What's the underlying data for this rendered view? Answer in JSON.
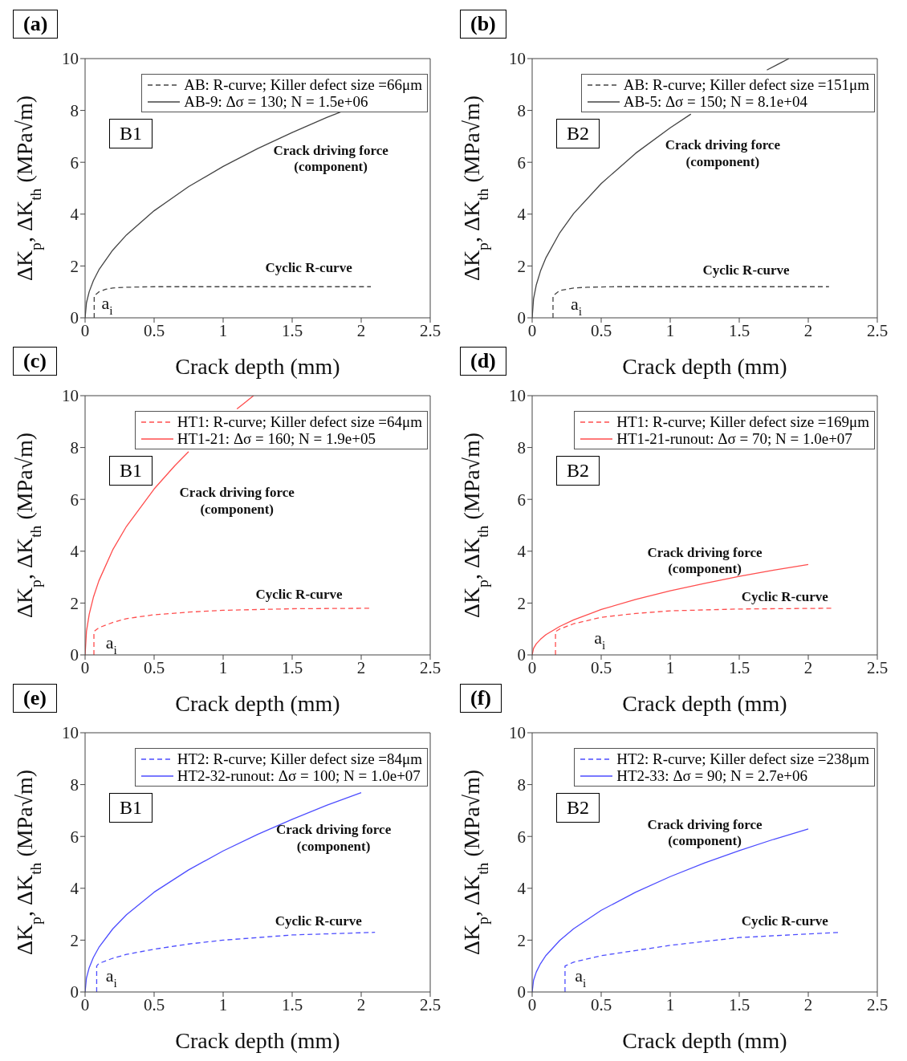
{
  "chart_data": [
    {
      "type": "line",
      "title": "(a)",
      "xlabel": "Crack depth (mm)",
      "ylabel": "ΔK$_{p}$, ΔK$_{th}$ (MPa√m)",
      "xlim": [
        0,
        2.5
      ],
      "ylim": [
        0,
        10
      ],
      "xticks": [
        0,
        0.5,
        1,
        1.5,
        2,
        2.5
      ],
      "yticks": [
        0,
        2,
        4,
        6,
        8,
        10
      ],
      "legend": "top right",
      "grid": false,
      "series": [
        {
          "name": "AB: R-curve; Killer defect size =66μm",
          "color": "#444444",
          "line_style": "dashed",
          "x": [
            0.066,
            0.066,
            0.1,
            0.15,
            0.2,
            0.3,
            0.5,
            1,
            1.5,
            2.07
          ],
          "values": [
            0,
            0.85,
            1.0,
            1.1,
            1.15,
            1.18,
            1.2,
            1.2,
            1.2,
            1.2
          ]
        },
        {
          "name": "AB-9: Δσ = 130; N = 1.5e+06",
          "color": "#444444",
          "line_style": "solid",
          "x": [
            0,
            0.01,
            0.03,
            0.06,
            0.1,
            0.2,
            0.3,
            0.5,
            0.75,
            1,
            1.25,
            1.5,
            1.75,
            1.85
          ],
          "values": [
            0,
            0.58,
            1.01,
            1.43,
            1.85,
            2.61,
            3.2,
            4.13,
            5.06,
            5.84,
            6.53,
            7.15,
            7.73,
            7.94
          ]
        }
      ],
      "annotations": [
        "B1",
        "Crack driving force\n(component)",
        "Cyclic R-curve",
        "a$_{i}$"
      ]
    },
    {
      "type": "line",
      "title": "(b)",
      "xlabel": "Crack depth (mm)",
      "ylabel": "ΔK$_{p}$, ΔK$_{th}$ (MPa√m)",
      "xlim": [
        0,
        2.5
      ],
      "ylim": [
        0,
        10
      ],
      "xticks": [
        0,
        0.5,
        1,
        1.5,
        2,
        2.5
      ],
      "yticks": [
        0,
        2,
        4,
        6,
        8,
        10
      ],
      "legend": "top right",
      "grid": false,
      "series": [
        {
          "name": "AB: R-curve; Killer defect size =151μm",
          "color": "#444444",
          "line_style": "dashed",
          "x": [
            0.151,
            0.151,
            0.2,
            0.3,
            0.4,
            0.6,
            1,
            1.5,
            2.15
          ],
          "values": [
            0,
            0.85,
            1.05,
            1.15,
            1.18,
            1.2,
            1.2,
            1.2,
            1.2
          ]
        },
        {
          "name": "AB-5: Δσ = 150; N = 8.1e+04",
          "color": "#444444",
          "line_style": "solid",
          "x": [
            0,
            0.01,
            0.03,
            0.06,
            0.1,
            0.2,
            0.3,
            0.5,
            0.75,
            1,
            1.15,
            1.5,
            1.7,
            1.78,
            1.86
          ],
          "values": [
            0,
            0.73,
            1.27,
            1.8,
            2.32,
            3.28,
            4.02,
            5.18,
            6.35,
            7.33,
            7.86,
            null,
            9.56,
            9.78,
            10
          ]
        }
      ],
      "annotations": [
        "B2",
        "Crack driving force\n(component)",
        "Cyclic R-curve",
        "a$_{i}$"
      ]
    },
    {
      "type": "line",
      "title": "(c)",
      "xlabel": "Crack depth (mm)",
      "ylabel": "ΔK$_{p}$, ΔK$_{th}$ (MPa√m)",
      "xlim": [
        0,
        2.5
      ],
      "ylim": [
        0,
        10
      ],
      "xticks": [
        0,
        0.5,
        1,
        1.5,
        2,
        2.5
      ],
      "yticks": [
        0,
        2,
        4,
        6,
        8,
        10
      ],
      "legend": "top right",
      "grid": false,
      "series": [
        {
          "name": "HT1: R-curve; Killer defect size =64μm",
          "color": "#ff4d4d",
          "line_style": "dashed",
          "x": [
            0.064,
            0.064,
            0.1,
            0.2,
            0.3,
            0.5,
            0.75,
            1,
            1.5,
            2.07
          ],
          "values": [
            0,
            0.9,
            1.05,
            1.25,
            1.4,
            1.55,
            1.65,
            1.72,
            1.78,
            1.8
          ]
        },
        {
          "name": "HT1-21: Δσ = 160; N = 1.9e+05",
          "color": "#ff4d4d",
          "line_style": "solid",
          "x": [
            0,
            0.01,
            0.03,
            0.06,
            0.1,
            0.2,
            0.3,
            0.5,
            0.65,
            0.75,
            0.9,
            1.1,
            1.15,
            1.22
          ],
          "values": [
            0,
            0.91,
            1.57,
            2.22,
            2.86,
            4.05,
            4.96,
            6.4,
            7.3,
            7.84,
            null,
            9.49,
            9.7,
            10
          ]
        }
      ],
      "annotations": [
        "B1",
        "Crack driving force\n(component)",
        "Cyclic R-curve",
        "a$_{i}$"
      ]
    },
    {
      "type": "line",
      "title": "(d)",
      "xlabel": "Crack depth (mm)",
      "ylabel": "ΔK$_{p}$, ΔK$_{th}$ (MPa√m)",
      "xlim": [
        0,
        2.5
      ],
      "ylim": [
        0,
        10
      ],
      "xticks": [
        0,
        0.5,
        1,
        1.5,
        2,
        2.5
      ],
      "yticks": [
        0,
        2,
        4,
        6,
        8,
        10
      ],
      "legend": "top right",
      "grid": false,
      "series": [
        {
          "name": "HT1: R-curve; Killer defect size =169μm",
          "color": "#ff4d4d",
          "line_style": "dashed",
          "x": [
            0.169,
            0.169,
            0.2,
            0.3,
            0.5,
            0.75,
            1,
            1.5,
            2.17
          ],
          "values": [
            0,
            0.9,
            1.0,
            1.2,
            1.45,
            1.6,
            1.7,
            1.77,
            1.8
          ]
        },
        {
          "name": "HT1-21-runout: Δσ = 70; N = 1.0e+07",
          "color": "#ff4d4d",
          "line_style": "solid",
          "x": [
            0,
            0.01,
            0.03,
            0.06,
            0.1,
            0.2,
            0.3,
            0.5,
            0.75,
            1,
            1.25,
            1.5,
            1.75,
            2
          ],
          "values": [
            0,
            0.25,
            0.43,
            0.6,
            0.78,
            1.1,
            1.35,
            1.75,
            2.14,
            2.47,
            2.76,
            3.03,
            3.27,
            3.49
          ]
        }
      ],
      "annotations": [
        "B2",
        "Crack driving force\n(component)",
        "Cyclic R-curve",
        "a$_{i}$"
      ]
    },
    {
      "type": "line",
      "title": "(e)",
      "xlabel": "Crack depth (mm)",
      "ylabel": "ΔK$_{p}$, ΔK$_{th}$ (MPa√m)",
      "xlim": [
        0,
        2.5
      ],
      "ylim": [
        0,
        10
      ],
      "xticks": [
        0,
        0.5,
        1,
        1.5,
        2,
        2.5
      ],
      "yticks": [
        0,
        2,
        4,
        6,
        8,
        10
      ],
      "legend": "top right",
      "grid": false,
      "series": [
        {
          "name": "HT2: R-curve; Killer defect size =84μm",
          "color": "#4d4dff",
          "line_style": "dashed",
          "x": [
            0.084,
            0.084,
            0.1,
            0.2,
            0.3,
            0.5,
            0.75,
            1,
            1.5,
            2.1
          ],
          "values": [
            0,
            1.0,
            1.1,
            1.3,
            1.45,
            1.65,
            1.85,
            2.0,
            2.2,
            2.3
          ]
        },
        {
          "name": "HT2-32-runout: Δσ = 100; N = 1.0e+07",
          "color": "#4d4dff",
          "line_style": "solid",
          "x": [
            0,
            0.01,
            0.03,
            0.06,
            0.1,
            0.2,
            0.3,
            0.5,
            0.75,
            1,
            1.25,
            1.5,
            1.75,
            2
          ],
          "values": [
            0,
            0.54,
            0.94,
            1.33,
            1.72,
            2.43,
            2.98,
            3.85,
            4.71,
            5.44,
            6.08,
            6.66,
            7.2,
            7.69
          ]
        }
      ],
      "annotations": [
        "B1",
        "Crack driving force\n(component)",
        "Cyclic R-curve",
        "a$_{i}$"
      ]
    },
    {
      "type": "line",
      "title": "(f)",
      "xlabel": "Crack depth (mm)",
      "ylabel": "ΔK$_{p}$, ΔK$_{th}$ (MPa√m)",
      "xlim": [
        0,
        2.5
      ],
      "ylim": [
        0,
        10
      ],
      "xticks": [
        0,
        0.5,
        1,
        1.5,
        2,
        2.5
      ],
      "yticks": [
        0,
        2,
        4,
        6,
        8,
        10
      ],
      "legend": "top right",
      "grid": false,
      "series": [
        {
          "name": "HT2: R-curve; Killer defect size =238μm",
          "color": "#4d4dff",
          "line_style": "dashed",
          "x": [
            0.238,
            0.238,
            0.3,
            0.5,
            0.75,
            1,
            1.5,
            2.23
          ],
          "values": [
            0,
            1.0,
            1.15,
            1.4,
            1.6,
            1.8,
            2.1,
            2.3
          ]
        },
        {
          "name": "HT2-33: Δσ = 90; N = 2.7e+06",
          "color": "#4d4dff",
          "line_style": "solid",
          "x": [
            0,
            0.01,
            0.03,
            0.06,
            0.1,
            0.2,
            0.3,
            0.5,
            0.75,
            1,
            1.25,
            1.5,
            1.75,
            2
          ],
          "values": [
            0,
            0.45,
            0.77,
            1.09,
            1.41,
            1.99,
            2.44,
            3.15,
            3.85,
            4.45,
            4.98,
            5.45,
            5.89,
            6.29
          ]
        }
      ],
      "annotations": [
        "B2",
        "Crack driving force\n(component)",
        "Cyclic R-curve",
        "a$_{i}$"
      ]
    }
  ]
}
